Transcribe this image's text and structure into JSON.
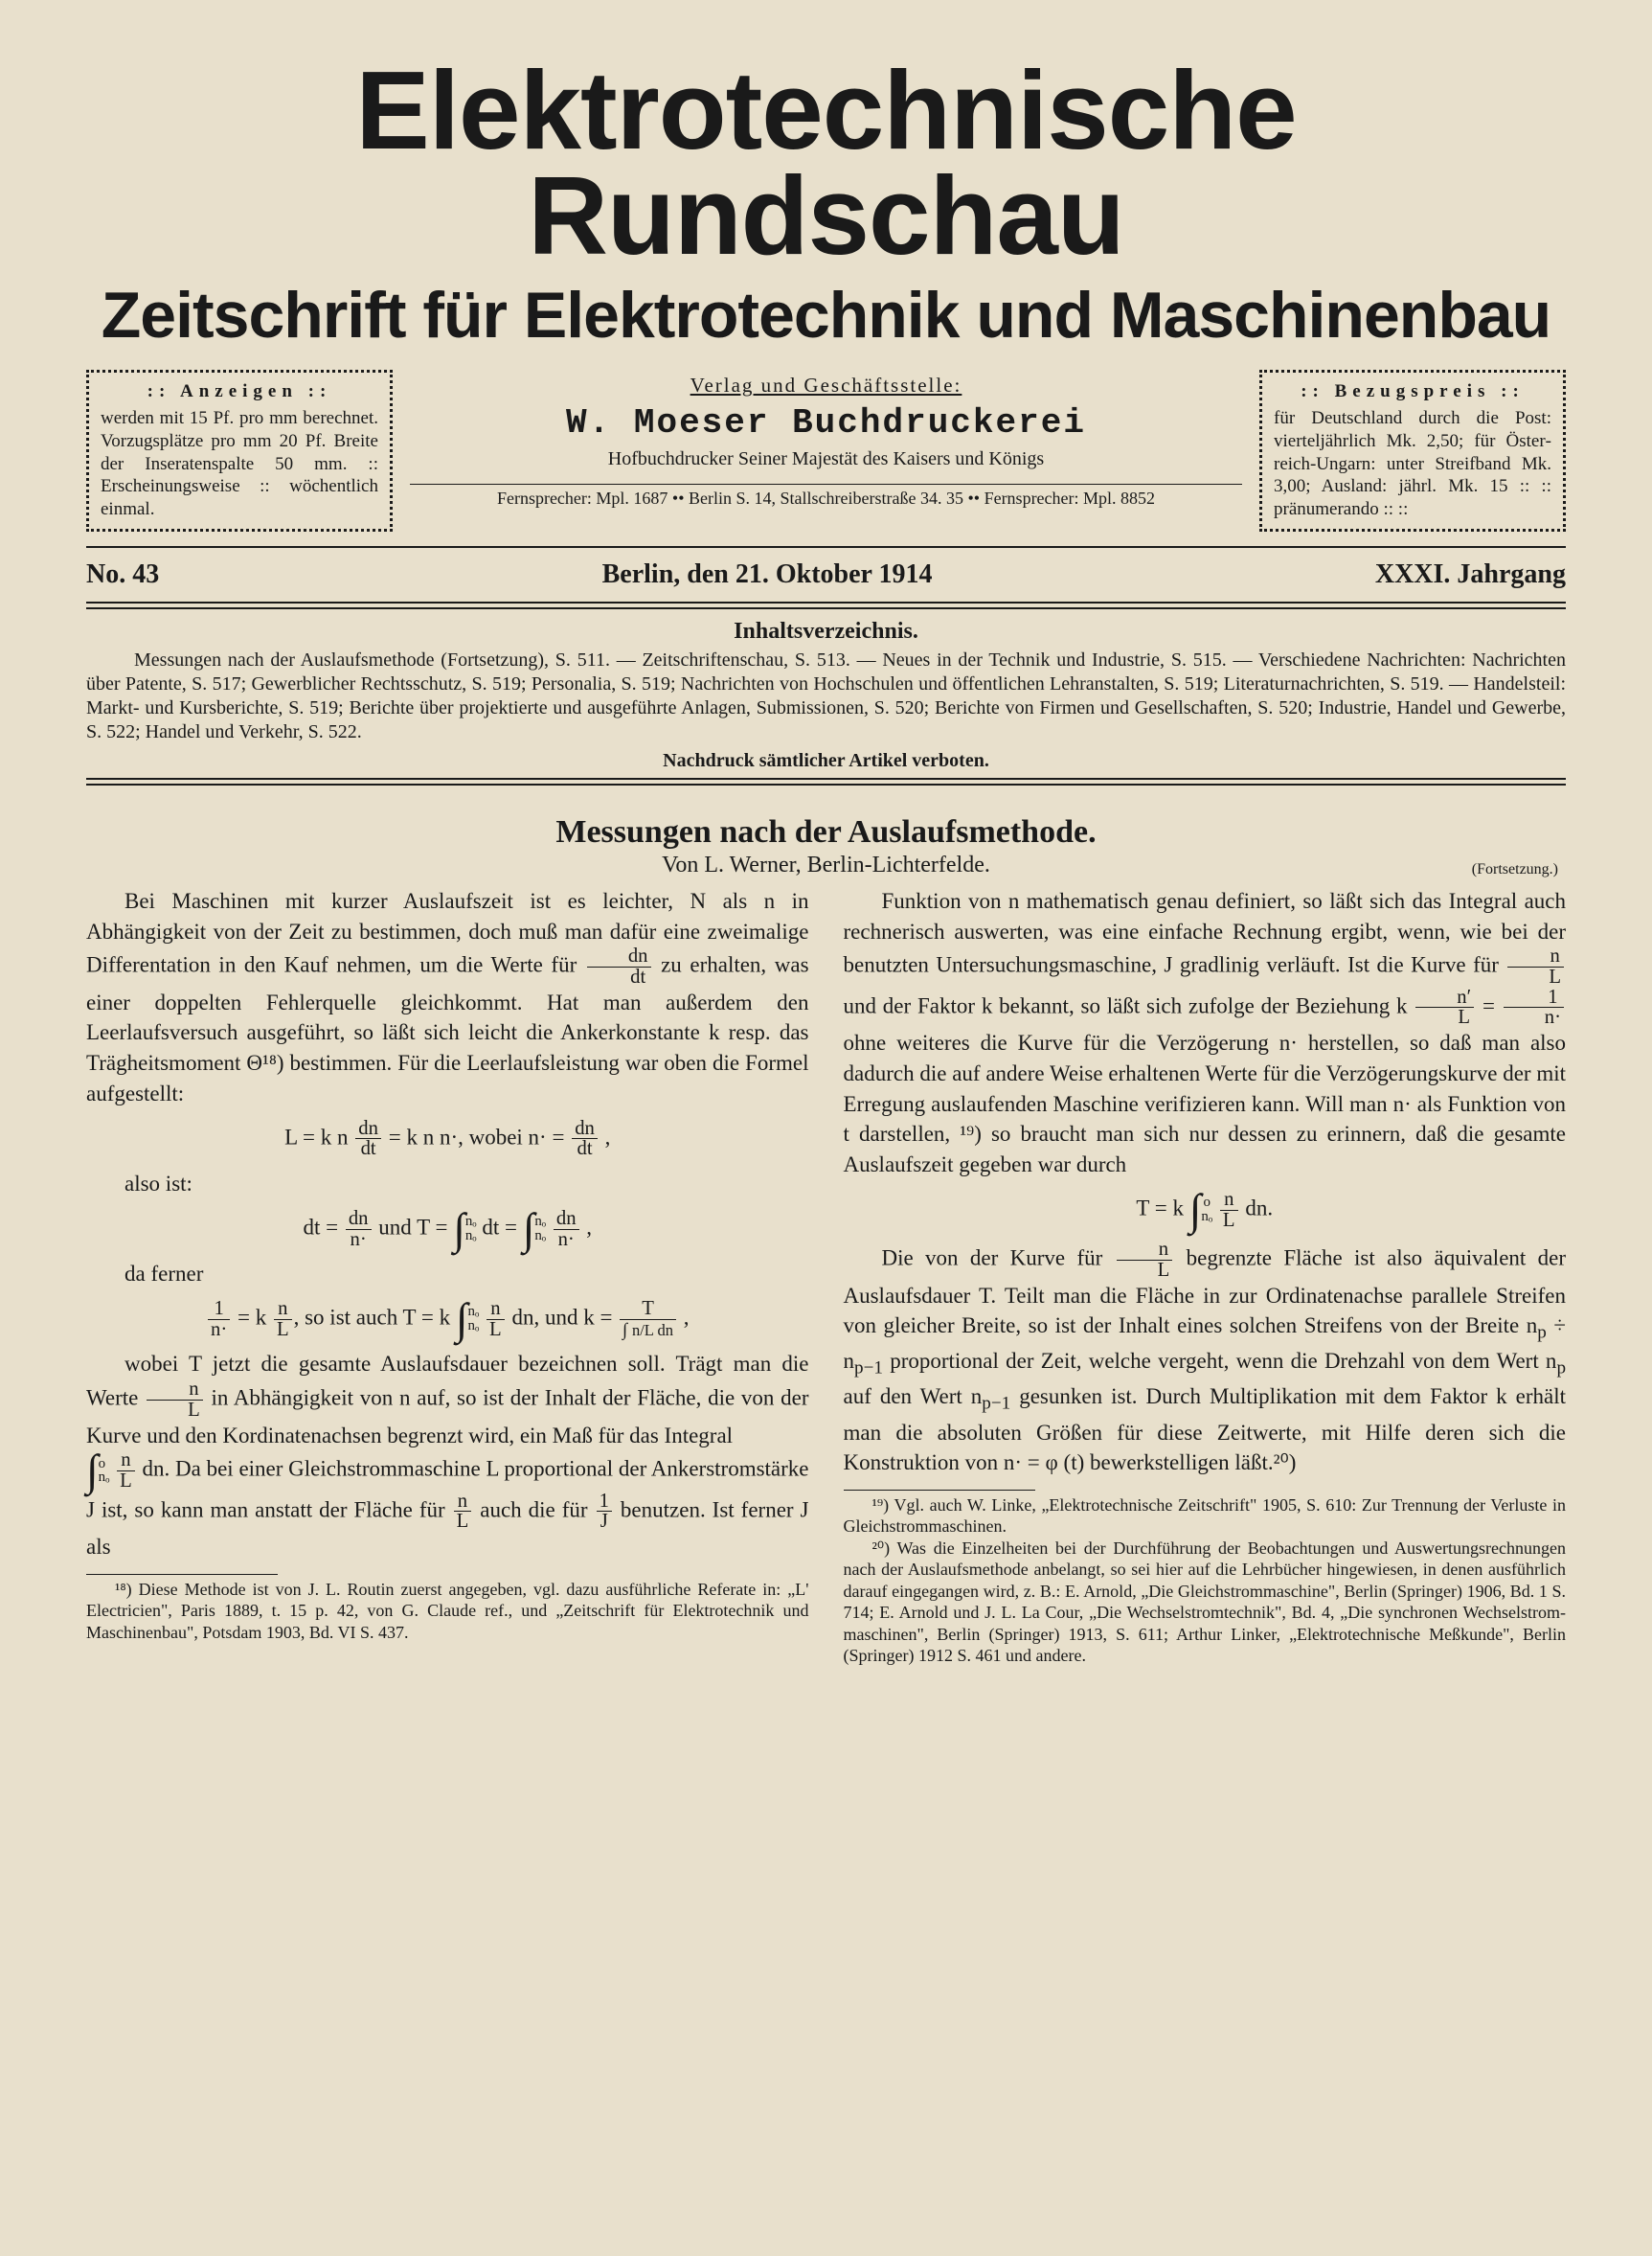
{
  "masthead": {
    "title": "Elektrotechnische Rundschau",
    "subtitle": "Zeitschrift für Elektrotechnik und Maschinenbau"
  },
  "anzeigen": {
    "heading": ":: Anzeigen ::",
    "body": "werden mit 15 Pf. pro mm berechnet. Vor­zugsplätze pro mm 20 Pf. Breite der In­seratenspalte 50 mm. :: Erscheinungsweise :: wöchentlich einmal."
  },
  "publisher": {
    "line1": "Verlag und Geschäftsstelle:",
    "name": "W. Moeser Buchdruckerei",
    "desc": "Hofbuchdrucker Seiner Majestät des Kaisers und Königs",
    "addr": "Fernsprecher: Mpl. 1687  ••  Berlin S. 14, Stallschreiberstraße 34. 35  ••  Fernsprecher: Mpl. 8852"
  },
  "bezugspreis": {
    "heading": ":: Bezugspreis ::",
    "body": "für Deutschland durch die Post: vierteljährlich Mk. 2,50; für Öster­reich-Ungarn: unter Streifband Mk. 3,00; Ausland: jährl. Mk. 15 :: :: pränumerando :: ::"
  },
  "issue": {
    "no": "No. 43",
    "date": "Berlin, den 21. Oktober 1914",
    "year": "XXXI. Jahrgang"
  },
  "toc": {
    "heading": "Inhaltsverzeichnis.",
    "body": "Messungen nach der Auslaufsmethode (Fortsetzung), S. 511. — Zeitschriftenschau, S. 513. — Neues in der Technik und Industrie, S. 515. — Verschiedene Nachrichten: Nachrichten über Patente, S. 517; Gewerblicher Rechtsschutz, S. 519; Personalia, S. 519; Nachrichten von Hochschulen und öffentlichen Lehranstalten, S. 519; Literaturnachrichten, S. 519. — Handelsteil: Markt- und Kursberichte, S. 519; Berichte über projektierte und ausgeführte Anlagen, Submissionen, S. 520; Berichte von Firmen und Gesellschaften, S. 520; Industrie, Handel und Gewerbe, S. 522; Handel und Verkehr, S. 522.",
    "footer": "Nachdruck sämtlicher Artikel verboten."
  },
  "article": {
    "title": "Messungen nach der Auslaufsmethode.",
    "author": "Von L. Werner, Berlin-Lichterfelde.",
    "continuation": "(Fortsetzung.)",
    "p1a": "Bei Maschinen mit kurzer Auslaufszeit ist es leichter, N als n in Abhängigkeit von der Zeit zu bestimmen, doch muß man dafür eine zweimalige Differentation in den Kauf nehmen, um die Werte für ",
    "p1b": " zu erhalten, was einer doppelten Fehlerquelle gleichkommt. Hat man außerdem den Leerlaufsversuch ausgeführt, so läßt sich leicht die Ankerkonstante k resp. das Trägheitsmoment Θ¹⁸) be­stimmen. Für die Leerlaufsleistung war oben die Formel aufgestellt:",
    "p2": "also ist:",
    "p3": "da ferner",
    "p4a": "wobei T jetzt die gesamte Auslaufsdauer bezeichnen soll. Trägt man die Werte ",
    "p4b": " in Abhängigkeit von n auf, so ist der Inhalt der Fläche, die von der Kurve und den Kor­dinatenachsen begrenzt wird, ein Maß für das Integral",
    "p5a": "dn. Da bei einer Gleichstrommaschine L propor­tional der Ankerstromstärke J ist, so kann man anstatt der Fläche für ",
    "p5b": " auch die für ",
    "p5c": " benutzen. Ist ferner J als",
    "fn18": "¹⁸) Diese Methode ist von J. L. Routin zuerst angegeben, vgl. dazu ausführliche Referate in: „L' Electricien\", Paris 1889, t. 15 p. 42, von G. Claude ref., und „Zeitschrift für Elektrotechnik und Maschinen­bau\", Potsdam 1903, Bd. VI S. 437.",
    "p6a": "Funktion von n mathematisch genau definiert, so läßt sich das Integral auch rechnerisch auswerten, was eine ein­fache Rechnung ergibt, wenn, wie bei der benutzten Unter­suchungsmaschine, J gradlinig verläuft. Ist die Kurve für ",
    "p6b": " und der Faktor k bekannt, so läßt sich zufolge der Beziehung k ",
    "p6c": " ohne weiteres die Kurve für die Verzögerung n· herstellen, so daß man also dadurch die auf andere Weise erhaltenen Werte für die Verzögerungs­kurve der mit Erregung auslaufenden Maschine verifizieren kann. Will man n· als Funktion von t darstellen, ¹⁹) so braucht man sich nur dessen zu erinnern, daß die gesamte Auslaufszeit gegeben war durch",
    "p7a": "Die von der Kurve für ",
    "p7b": " begrenzte Fläche ist also äqui­valent der Auslaufsdauer T. Teilt man die Fläche in zur Ordinatenachse parallele Streifen von gleicher Breite, so ist der Inhalt eines solchen Streifens von der Breite n",
    "p7c": " ÷ n",
    "p7d": " proportional der Zeit, welche vergeht, wenn die Drehzahl von dem Wert n",
    "p7e": " auf den Wert n",
    "p7f": " ge­sunken ist. Durch Multiplikation mit dem Faktor k er­hält man die absoluten Größen für diese Zeitwerte, mit Hilfe deren sich die Konstruktion von n· = φ (t) bewerk­stelligen läßt.²⁰)",
    "fn19": "¹⁹) Vgl. auch W. Linke, „Elektrotechnische Zeitschrift\" 1905, S. 610: Zur Trennung der Verluste in Gleichstrommaschinen.",
    "fn20": "²⁰) Was die Einzelheiten bei der Durchführung der Beobachtungen und Auswertungsrechnungen nach der Auslaufsmethode anbelangt, so sei hier auf die Lehrbücher hingewiesen, in denen ausführlich darauf eingegangen wird, z. B.: E. Arnold, „Die Gleichstrommaschine\", Berlin (Springer) 1906, Bd. 1 S. 714; E. Arnold und J. L. La Cour, „Die Wechselstromtechnik\", Bd. 4, „Die synchronen Wechselstrom­maschinen\", Berlin (Springer) 1913, S. 611; Arthur Linker, „Elektro­technische Meßkunde\", Berlin (Springer) 1912 S. 461 und andere."
  },
  "colors": {
    "bg": "#e8e0cc",
    "ink": "#1a1a1a"
  }
}
